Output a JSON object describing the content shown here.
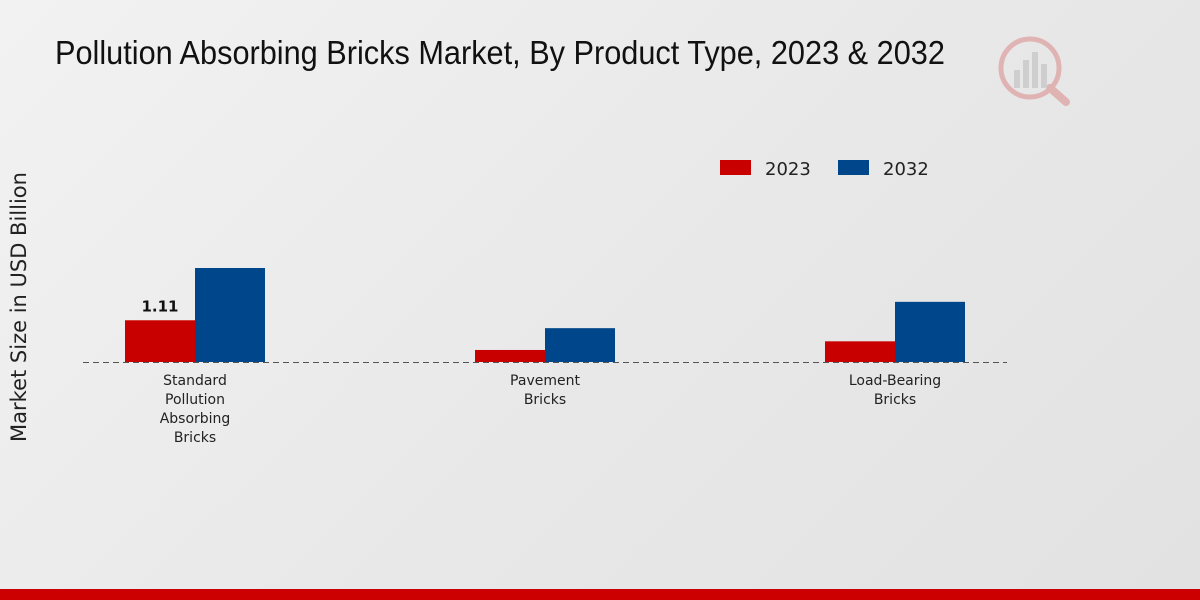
{
  "title": "Pollution Absorbing Bricks Market, By Product Type, 2023 & 2032",
  "colors": {
    "series_2023": "#c90000",
    "series_2032": "#00468a",
    "accent_bar": "#cc0000"
  },
  "chart_data": {
    "type": "bar",
    "title": "Pollution Absorbing Bricks Market, By Product Type, 2023 & 2032",
    "xlabel": "",
    "ylabel": "Market Size in USD Billion",
    "categories": [
      "Standard Pollution Absorbing Bricks",
      "Pavement Bricks",
      "Load-Bearing Bricks"
    ],
    "category_label_lines": [
      [
        "Standard",
        "Pollution",
        "Absorbing",
        "Bricks"
      ],
      [
        "Pavement",
        "Bricks"
      ],
      [
        "Load-Bearing",
        "Bricks"
      ]
    ],
    "series": [
      {
        "name": "2023",
        "values": [
          1.11,
          0.32,
          0.55
        ]
      },
      {
        "name": "2032",
        "values": [
          2.5,
          0.9,
          1.6
        ]
      }
    ],
    "data_labels": [
      {
        "series": "2023",
        "category": "Standard Pollution Absorbing Bricks",
        "text": "1.11"
      }
    ],
    "ylim": [
      0,
      3.0
    ],
    "legend": {
      "position": "top-right",
      "entries": [
        "2023",
        "2032"
      ]
    },
    "grid": false
  }
}
